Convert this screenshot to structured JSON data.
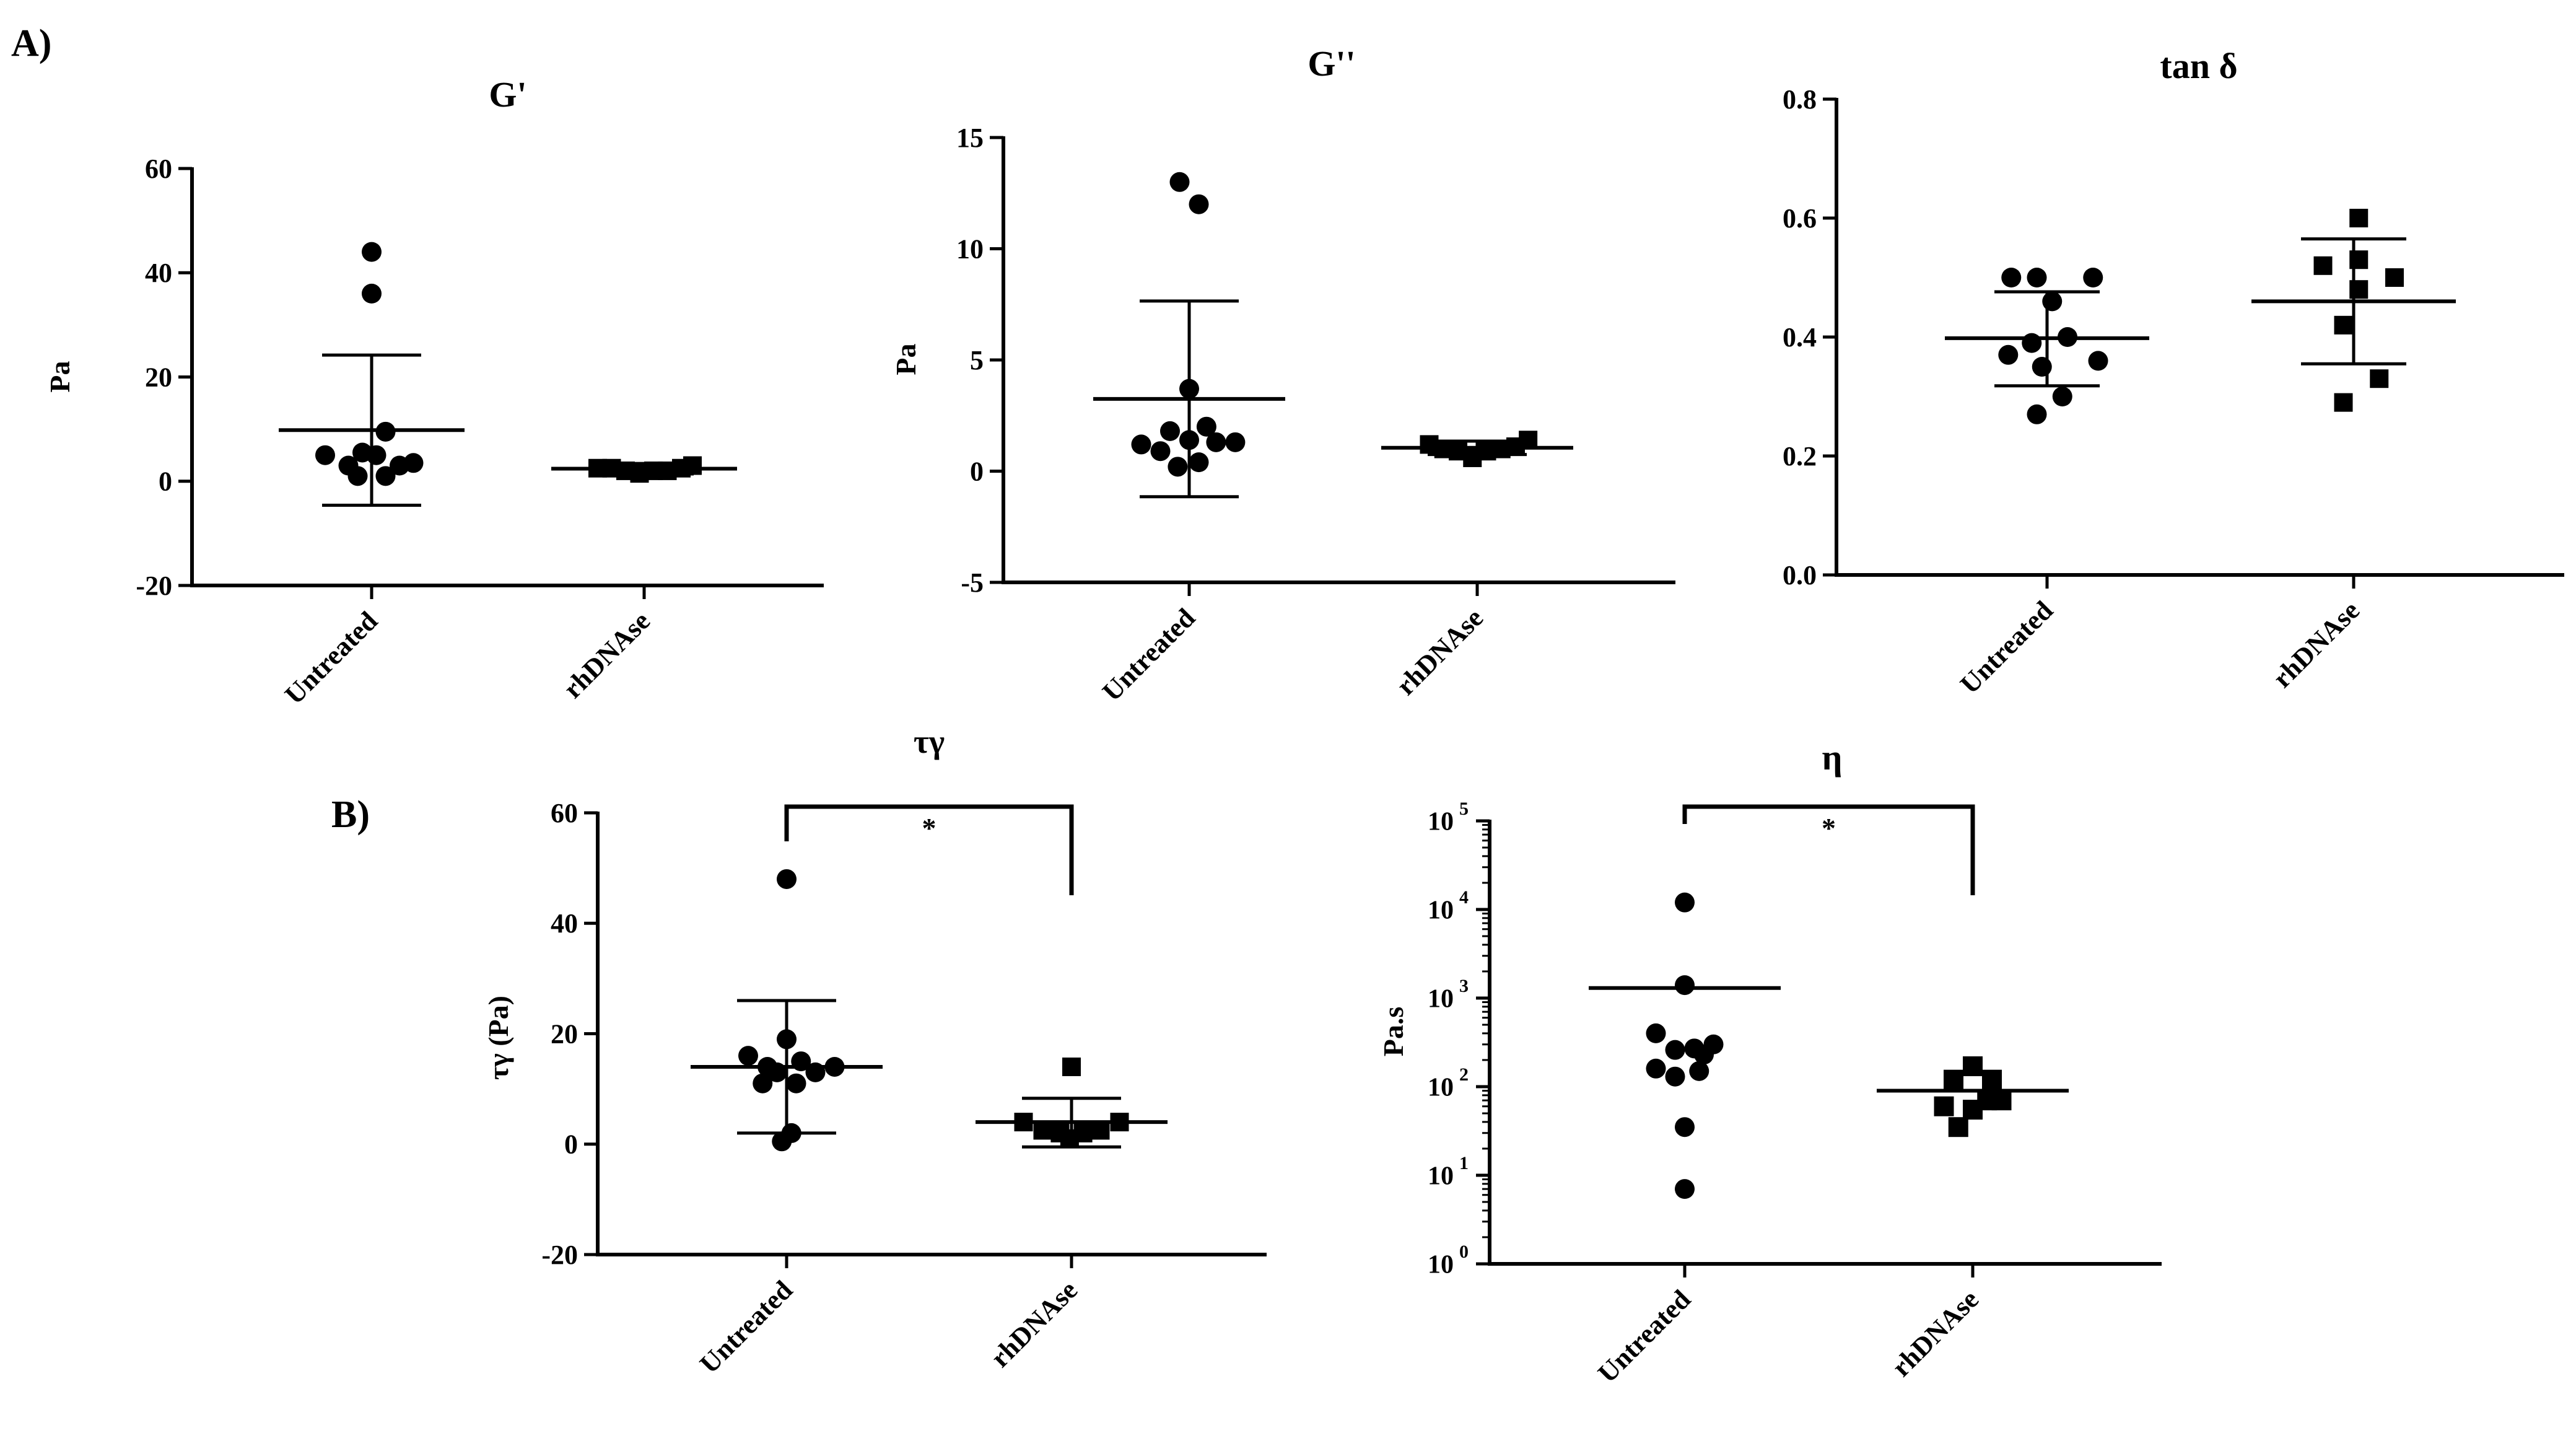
{
  "panel_labels": {
    "a": "A)",
    "b": "B)"
  },
  "chart_data": [
    {
      "id": "gprime",
      "type": "scatter",
      "title": "G'",
      "ylabel": "Pa",
      "ylim": [
        -20,
        60
      ],
      "yticks": [
        -20,
        0,
        20,
        40,
        60
      ],
      "ytick_labels": [
        "-20",
        "0",
        "20",
        "40",
        "60"
      ],
      "categories": [
        "Untreated",
        "rhDNAse"
      ],
      "series": [
        {
          "category": "Untreated",
          "marker": "circle",
          "mean": 9.8,
          "sd_low": -4.6,
          "sd_high": 24.2,
          "points": [
            {
              "dx": 0,
              "y": 44
            },
            {
              "dx": 0,
              "y": 36
            },
            {
              "dx": 0.15,
              "y": 9.5
            },
            {
              "dx": -0.5,
              "y": 5
            },
            {
              "dx": -0.25,
              "y": 3
            },
            {
              "dx": -0.1,
              "y": 5.5
            },
            {
              "dx": 0.05,
              "y": 5
            },
            {
              "dx": 0.3,
              "y": 3
            },
            {
              "dx": 0.45,
              "y": 3.5
            },
            {
              "dx": -0.15,
              "y": 1
            },
            {
              "dx": 0.15,
              "y": 1
            }
          ]
        },
        {
          "category": "rhDNAse",
          "marker": "square",
          "mean": 2.4,
          "sd_low": 1.4,
          "sd_high": 3.4,
          "points": [
            {
              "dx": -0.5,
              "y": 2.5
            },
            {
              "dx": -0.35,
              "y": 2.5
            },
            {
              "dx": -0.2,
              "y": 2
            },
            {
              "dx": -0.05,
              "y": 1.5
            },
            {
              "dx": 0.1,
              "y": 2
            },
            {
              "dx": 0.25,
              "y": 2
            },
            {
              "dx": 0.4,
              "y": 2.5
            },
            {
              "dx": 0.52,
              "y": 3
            }
          ]
        }
      ]
    },
    {
      "id": "gdoubleprime",
      "type": "scatter",
      "title": "G''",
      "ylabel": "Pa",
      "ylim": [
        -5,
        15
      ],
      "yticks": [
        -5,
        0,
        5,
        10,
        15
      ],
      "ytick_labels": [
        "-5",
        "0",
        "5",
        "10",
        "15"
      ],
      "categories": [
        "Untreated",
        "rhDNAse"
      ],
      "series": [
        {
          "category": "Untreated",
          "marker": "circle",
          "mean": 3.25,
          "sd_low": -1.15,
          "sd_high": 7.65,
          "points": [
            {
              "dx": -0.1,
              "y": 13
            },
            {
              "dx": 0.1,
              "y": 12
            },
            {
              "dx": 0,
              "y": 3.7
            },
            {
              "dx": -0.2,
              "y": 1.8
            },
            {
              "dx": 0.18,
              "y": 2
            },
            {
              "dx": -0.5,
              "y": 1.2
            },
            {
              "dx": -0.3,
              "y": 0.9
            },
            {
              "dx": 0,
              "y": 1.4
            },
            {
              "dx": 0.28,
              "y": 1.3
            },
            {
              "dx": 0.48,
              "y": 1.3
            },
            {
              "dx": -0.12,
              "y": 0.2
            },
            {
              "dx": 0.1,
              "y": 0.4
            }
          ]
        },
        {
          "category": "rhDNAse",
          "marker": "square",
          "mean": 1.05,
          "sd_low": 0.75,
          "sd_high": 1.35,
          "points": [
            {
              "dx": -0.5,
              "y": 1.2
            },
            {
              "dx": -0.35,
              "y": 1
            },
            {
              "dx": -0.2,
              "y": 0.9
            },
            {
              "dx": -0.05,
              "y": 0.6
            },
            {
              "dx": 0.1,
              "y": 0.9
            },
            {
              "dx": 0.25,
              "y": 1
            },
            {
              "dx": 0.4,
              "y": 1.1
            },
            {
              "dx": 0.53,
              "y": 1.4
            }
          ]
        }
      ]
    },
    {
      "id": "tandelta",
      "type": "scatter",
      "title": "tan δ",
      "ylabel": "",
      "ylim": [
        0,
        0.8
      ],
      "yticks": [
        0,
        0.2,
        0.4,
        0.6,
        0.8
      ],
      "ytick_labels": [
        "0.0",
        "0.2",
        "0.4",
        "0.6",
        "0.8"
      ],
      "categories": [
        "Untreated",
        "rhDNAse"
      ],
      "series": [
        {
          "category": "Untreated",
          "marker": "circle",
          "mean": 0.398,
          "sd_low": 0.318,
          "sd_high": 0.476,
          "points": [
            {
              "dx": -0.35,
              "y": 0.5
            },
            {
              "dx": -0.1,
              "y": 0.5
            },
            {
              "dx": 0.45,
              "y": 0.5
            },
            {
              "dx": 0.05,
              "y": 0.46
            },
            {
              "dx": -0.15,
              "y": 0.39
            },
            {
              "dx": 0.2,
              "y": 0.4
            },
            {
              "dx": -0.38,
              "y": 0.37
            },
            {
              "dx": 0.5,
              "y": 0.36
            },
            {
              "dx": -0.05,
              "y": 0.35
            },
            {
              "dx": 0.15,
              "y": 0.3
            },
            {
              "dx": -0.1,
              "y": 0.27
            }
          ]
        },
        {
          "category": "rhDNAse",
          "marker": "square",
          "mean": 0.46,
          "sd_low": 0.355,
          "sd_high": 0.565,
          "points": [
            {
              "dx": 0.05,
              "y": 0.6
            },
            {
              "dx": -0.3,
              "y": 0.52
            },
            {
              "dx": 0.05,
              "y": 0.53
            },
            {
              "dx": 0.4,
              "y": 0.5
            },
            {
              "dx": 0.05,
              "y": 0.48
            },
            {
              "dx": -0.1,
              "y": 0.42
            },
            {
              "dx": 0.25,
              "y": 0.33
            },
            {
              "dx": -0.1,
              "y": 0.29
            }
          ]
        }
      ]
    },
    {
      "id": "taugamma",
      "type": "scatter",
      "title": "τγ",
      "ylabel": "τγ (Pa)",
      "ylim": [
        -20,
        60
      ],
      "yticks": [
        -20,
        0,
        20,
        40,
        60
      ],
      "ytick_labels": [
        "-20",
        "0",
        "20",
        "40",
        "60"
      ],
      "categories": [
        "Untreated",
        "rhDNAse"
      ],
      "series": [
        {
          "category": "Untreated",
          "marker": "circle",
          "mean": 14,
          "sd_low": 2,
          "sd_high": 26,
          "points": [
            {
              "dx": 0,
              "y": 48
            },
            {
              "dx": 0,
              "y": 19
            },
            {
              "dx": -0.4,
              "y": 16
            },
            {
              "dx": -0.2,
              "y": 14
            },
            {
              "dx": -0.1,
              "y": 13
            },
            {
              "dx": 0.15,
              "y": 15
            },
            {
              "dx": 0.5,
              "y": 14
            },
            {
              "dx": 0.3,
              "y": 13
            },
            {
              "dx": -0.25,
              "y": 11
            },
            {
              "dx": 0.1,
              "y": 11
            },
            {
              "dx": 0.05,
              "y": 2
            },
            {
              "dx": -0.05,
              "y": 0.5
            }
          ]
        },
        {
          "category": "rhDNAse",
          "marker": "square",
          "mean": 4,
          "sd_low": -0.5,
          "sd_high": 8.3,
          "points": [
            {
              "dx": 0,
              "y": 14
            },
            {
              "dx": -0.5,
              "y": 4
            },
            {
              "dx": 0.5,
              "y": 4
            },
            {
              "dx": -0.3,
              "y": 2.5
            },
            {
              "dx": 0.3,
              "y": 2.5
            },
            {
              "dx": -0.12,
              "y": 2
            },
            {
              "dx": 0.12,
              "y": 2
            },
            {
              "dx": -0.02,
              "y": 1
            }
          ]
        }
      ],
      "significance": {
        "label": "*",
        "between": [
          "Untreated",
          "rhDNAse"
        ]
      }
    },
    {
      "id": "eta",
      "type": "scatter",
      "title": "η",
      "ylabel": "Pa.s",
      "yscale": "log",
      "ylim": [
        1,
        100000
      ],
      "yticks": [
        1,
        10,
        100,
        1000,
        10000,
        100000
      ],
      "ytick_labels": [
        {
          "base": "10",
          "exp": "0"
        },
        {
          "base": "10",
          "exp": "1"
        },
        {
          "base": "10",
          "exp": "2"
        },
        {
          "base": "10",
          "exp": "3"
        },
        {
          "base": "10",
          "exp": "4"
        },
        {
          "base": "10",
          "exp": "5"
        }
      ],
      "categories": [
        "Untreated",
        "rhDNAse"
      ],
      "series": [
        {
          "category": "Untreated",
          "marker": "circle",
          "mean": 1300,
          "points": [
            {
              "dx": 0,
              "y": 12000
            },
            {
              "dx": 0,
              "y": 1400
            },
            {
              "dx": -0.3,
              "y": 400
            },
            {
              "dx": 0.3,
              "y": 300
            },
            {
              "dx": 0.1,
              "y": 270
            },
            {
              "dx": -0.1,
              "y": 260
            },
            {
              "dx": 0.2,
              "y": 230
            },
            {
              "dx": -0.3,
              "y": 160
            },
            {
              "dx": 0.15,
              "y": 150
            },
            {
              "dx": -0.1,
              "y": 130
            },
            {
              "dx": 0,
              "y": 35
            },
            {
              "dx": 0,
              "y": 7
            }
          ]
        },
        {
          "category": "rhDNAse",
          "marker": "square",
          "mean": 90,
          "points": [
            {
              "dx": 0,
              "y": 170
            },
            {
              "dx": -0.2,
              "y": 120
            },
            {
              "dx": 0.2,
              "y": 120
            },
            {
              "dx": -0.3,
              "y": 60
            },
            {
              "dx": 0,
              "y": 55
            },
            {
              "dx": 0.3,
              "y": 70
            },
            {
              "dx": -0.15,
              "y": 35
            },
            {
              "dx": 0.15,
              "y": 70
            }
          ]
        }
      ],
      "significance": {
        "label": "*",
        "between": [
          "Untreated",
          "rhDNAse"
        ]
      }
    }
  ]
}
